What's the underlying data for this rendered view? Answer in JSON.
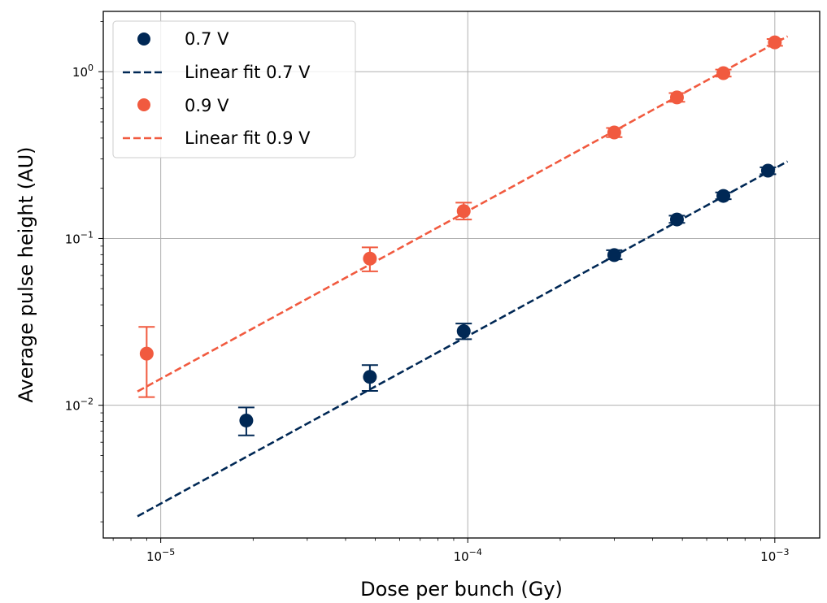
{
  "chart_data": {
    "type": "scatter",
    "xlabel": "Dose per bunch (Gy)",
    "ylabel": "Average pulse height (AU)",
    "xscale": "log",
    "yscale": "log",
    "xlim": [
      6.5e-06,
      0.0014
    ],
    "ylim": [
      0.0016,
      2.3
    ],
    "grid": true,
    "legend_position": "top-left",
    "x_ticks": [
      {
        "value": 1e-05,
        "base": "10",
        "exp": "−5"
      },
      {
        "value": 0.0001,
        "base": "10",
        "exp": "−4"
      },
      {
        "value": 0.001,
        "base": "10",
        "exp": "−3"
      }
    ],
    "y_ticks": [
      {
        "value": 0.01,
        "base": "10",
        "exp": "−2"
      },
      {
        "value": 0.1,
        "base": "10",
        "exp": "−1"
      },
      {
        "value": 1,
        "base": "10",
        "exp": "0"
      }
    ],
    "series": [
      {
        "name": "0.7 V",
        "kind": "points",
        "color": "#002855",
        "points": [
          {
            "x": 1.9e-05,
            "y": 0.0081,
            "lo": 0.0066,
            "hi": 0.0097
          },
          {
            "x": 4.8e-05,
            "y": 0.0148,
            "lo": 0.0122,
            "hi": 0.0174
          },
          {
            "x": 9.7e-05,
            "y": 0.0278,
            "lo": 0.0249,
            "hi": 0.0309
          },
          {
            "x": 0.0003,
            "y": 0.0795,
            "lo": 0.075,
            "hi": 0.085
          },
          {
            "x": 0.00048,
            "y": 0.13,
            "lo": 0.124,
            "hi": 0.137
          },
          {
            "x": 0.00068,
            "y": 0.18,
            "lo": 0.172,
            "hi": 0.189
          },
          {
            "x": 0.00095,
            "y": 0.255,
            "lo": 0.243,
            "hi": 0.267
          }
        ]
      },
      {
        "name": "Linear fit 0.7 V",
        "kind": "line",
        "color": "#002855",
        "dashed": true,
        "points": [
          {
            "x": 8.4e-06,
            "y": 0.00216
          },
          {
            "x": 0.0011,
            "y": 0.29
          }
        ]
      },
      {
        "name": "0.9 V",
        "kind": "points",
        "color": "#f15a3f",
        "points": [
          {
            "x": 9e-06,
            "y": 0.0204,
            "lo": 0.0112,
            "hi": 0.0295
          },
          {
            "x": 4.8e-05,
            "y": 0.0757,
            "lo": 0.0635,
            "hi": 0.0885
          },
          {
            "x": 9.7e-05,
            "y": 0.146,
            "lo": 0.13,
            "hi": 0.164
          },
          {
            "x": 0.0003,
            "y": 0.432,
            "lo": 0.405,
            "hi": 0.46
          },
          {
            "x": 0.00048,
            "y": 0.701,
            "lo": 0.66,
            "hi": 0.745
          },
          {
            "x": 0.00068,
            "y": 0.98,
            "lo": 0.935,
            "hi": 1.03
          },
          {
            "x": 0.001,
            "y": 1.5,
            "lo": 1.43,
            "hi": 1.57
          }
        ]
      },
      {
        "name": "Linear fit 0.9 V",
        "kind": "line",
        "color": "#f15a3f",
        "dashed": true,
        "points": [
          {
            "x": 8.4e-06,
            "y": 0.0121
          },
          {
            "x": 0.0011,
            "y": 1.63
          }
        ]
      }
    ]
  }
}
